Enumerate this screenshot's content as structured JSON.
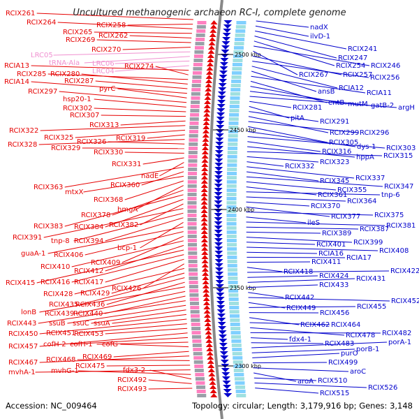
{
  "title": "Uncultured methanogenic archaeon RC-I, complete genome",
  "footer": {
    "accession": "Accession: NC_009464",
    "summary": "Topology: circular; Length: 3,179,916 bp; Genes: 3,148"
  },
  "colors": {
    "forward": "#e60000",
    "reverse": "#0000cc",
    "rna": "#f090d0",
    "backbone": "#888888"
  },
  "ticks": [
    "2500 kbp",
    "2450 kbp",
    "2400 kbp",
    "2350 kbp",
    "2300 kbp"
  ],
  "left_labels": [
    {
      "text": "RCIX261",
      "color": "red"
    },
    {
      "text": "RCIX258",
      "color": "red"
    },
    {
      "text": "RCIX264",
      "color": "red"
    },
    {
      "text": "RCIX265",
      "color": "red"
    },
    {
      "text": "RCIX262",
      "color": "red"
    },
    {
      "text": "RCIX269",
      "color": "red"
    },
    {
      "text": "RCIX270",
      "color": "red"
    },
    {
      "text": "LRC05",
      "color": "pink"
    },
    {
      "text": "tRNA-Ala",
      "color": "pink"
    },
    {
      "text": "LRC06",
      "color": "pink"
    },
    {
      "text": "LRC04",
      "color": "pink"
    },
    {
      "text": "RCIA13",
      "color": "red"
    },
    {
      "text": "RCIX274",
      "color": "red"
    },
    {
      "text": "RCIX285",
      "color": "red"
    },
    {
      "text": "RCIX280",
      "color": "red"
    },
    {
      "text": "RCIX287",
      "color": "red"
    },
    {
      "text": "RCIA14",
      "color": "red"
    },
    {
      "text": "pyrC",
      "color": "red"
    },
    {
      "text": "RCIX297",
      "color": "red"
    },
    {
      "text": "hsp20-1",
      "color": "red"
    },
    {
      "text": "RCIX302",
      "color": "red"
    },
    {
      "text": "RCIX307",
      "color": "red"
    },
    {
      "text": "RCIX313",
      "color": "red"
    },
    {
      "text": "RCIX322",
      "color": "red"
    },
    {
      "text": "RCIX325",
      "color": "red"
    },
    {
      "text": "RCIX319",
      "color": "red"
    },
    {
      "text": "RCIX328",
      "color": "red"
    },
    {
      "text": "RCIX326",
      "color": "red"
    },
    {
      "text": "RCIX329",
      "color": "red"
    },
    {
      "text": "RCIX330",
      "color": "red"
    },
    {
      "text": "RCIX331",
      "color": "red"
    },
    {
      "text": "nadE",
      "color": "red"
    },
    {
      "text": "RCIX363",
      "color": "red"
    },
    {
      "text": "RCIX360",
      "color": "red"
    },
    {
      "text": "mtxX",
      "color": "red"
    },
    {
      "text": "RCIX368",
      "color": "red"
    },
    {
      "text": "hmgA",
      "color": "red"
    },
    {
      "text": "RCIX378",
      "color": "red"
    },
    {
      "text": "RCIX383",
      "color": "red"
    },
    {
      "text": "RCIX384",
      "color": "red"
    },
    {
      "text": "RCIX382",
      "color": "red"
    },
    {
      "text": "RCIX391",
      "color": "red"
    },
    {
      "text": "tnp-8",
      "color": "red"
    },
    {
      "text": "RCIX394",
      "color": "red"
    },
    {
      "text": "bcp-1",
      "color": "red"
    },
    {
      "text": "guaA-1",
      "color": "red"
    },
    {
      "text": "RCIX406",
      "color": "red"
    },
    {
      "text": "RCIX409",
      "color": "red"
    },
    {
      "text": "RCIX410",
      "color": "red"
    },
    {
      "text": "RCIX412",
      "color": "red"
    },
    {
      "text": "RCIX415",
      "color": "red"
    },
    {
      "text": "RCIX416",
      "color": "red"
    },
    {
      "text": "RCIX417",
      "color": "red"
    },
    {
      "text": "RCIX426",
      "color": "red"
    },
    {
      "text": "RCIX428",
      "color": "red"
    },
    {
      "text": "RCIX429",
      "color": "red"
    },
    {
      "text": "RCIX435",
      "color": "red"
    },
    {
      "text": "RCIX436",
      "color": "red"
    },
    {
      "text": "lonB",
      "color": "red"
    },
    {
      "text": "RCIX439",
      "color": "red"
    },
    {
      "text": "RCIX440",
      "color": "red"
    },
    {
      "text": "RCIX443",
      "color": "red"
    },
    {
      "text": "ssuB",
      "color": "red"
    },
    {
      "text": "ssuC",
      "color": "red"
    },
    {
      "text": "ssuA",
      "color": "red"
    },
    {
      "text": "RCIX450",
      "color": "red"
    },
    {
      "text": "RCIX451",
      "color": "red"
    },
    {
      "text": "RCIX453",
      "color": "red"
    },
    {
      "text": "RCIX457",
      "color": "red"
    },
    {
      "text": "cofH-2",
      "color": "red"
    },
    {
      "text": "cofH-1",
      "color": "red"
    },
    {
      "text": "cofG",
      "color": "red"
    },
    {
      "text": "RCIX469",
      "color": "red"
    },
    {
      "text": "RCIX467",
      "color": "red"
    },
    {
      "text": "RCIX468",
      "color": "red"
    },
    {
      "text": "RCIX475",
      "color": "red"
    },
    {
      "text": "mvhA-1",
      "color": "red"
    },
    {
      "text": "mvhG-1",
      "color": "red"
    },
    {
      "text": "fdx3-2",
      "color": "red"
    },
    {
      "text": "RCIX492",
      "color": "red"
    },
    {
      "text": "RCIX493",
      "color": "red"
    }
  ],
  "right_labels": [
    {
      "text": "nadX"
    },
    {
      "text": "ilvD-1"
    },
    {
      "text": "RCIX241"
    },
    {
      "text": "RCIX247"
    },
    {
      "text": "RCIX254"
    },
    {
      "text": "RCIX246"
    },
    {
      "text": "RCIX267"
    },
    {
      "text": "RCIX257"
    },
    {
      "text": "RCIX256"
    },
    {
      "text": "RCIA12"
    },
    {
      "text": "ansB"
    },
    {
      "text": "RCIA11"
    },
    {
      "text": "entB"
    },
    {
      "text": "mutM"
    },
    {
      "text": "gatB-2"
    },
    {
      "text": "argH"
    },
    {
      "text": "RCIX281"
    },
    {
      "text": "pitA"
    },
    {
      "text": "RCIX291"
    },
    {
      "text": "RCIX299"
    },
    {
      "text": "RCIX296"
    },
    {
      "text": "RCIX305"
    },
    {
      "text": "dys-1"
    },
    {
      "text": "RCIX303"
    },
    {
      "text": "RCIX316"
    },
    {
      "text": "hppA"
    },
    {
      "text": "RCIX315"
    },
    {
      "text": "RCIX323"
    },
    {
      "text": "RCIX332"
    },
    {
      "text": "RCIX337"
    },
    {
      "text": "RCIX345"
    },
    {
      "text": "RCIX347"
    },
    {
      "text": "RCIX355"
    },
    {
      "text": "RCIX361"
    },
    {
      "text": "tnp-6"
    },
    {
      "text": "RCIX364"
    },
    {
      "text": "RCIX370"
    },
    {
      "text": "RCIX377"
    },
    {
      "text": "RCIX375"
    },
    {
      "text": "ileS"
    },
    {
      "text": "RCIX381"
    },
    {
      "text": "RCIX387"
    },
    {
      "text": "RCIX389"
    },
    {
      "text": "RCIX399"
    },
    {
      "text": "RCIX401"
    },
    {
      "text": "RCIX408"
    },
    {
      "text": "RCIA16"
    },
    {
      "text": "RCIA17"
    },
    {
      "text": "RCIX411"
    },
    {
      "text": "RCIX418"
    },
    {
      "text": "RCIX422"
    },
    {
      "text": "RCIX424"
    },
    {
      "text": "RCIX431"
    },
    {
      "text": "RCIX433"
    },
    {
      "text": "RCIX442"
    },
    {
      "text": "RCIX452"
    },
    {
      "text": "RCIX449"
    },
    {
      "text": "RCIX455"
    },
    {
      "text": "RCIX456"
    },
    {
      "text": "RCIX462"
    },
    {
      "text": "RCIX464"
    },
    {
      "text": "RCIX478"
    },
    {
      "text": "RCIX482"
    },
    {
      "text": "fdx4-1"
    },
    {
      "text": "RCIX483"
    },
    {
      "text": "porA-1"
    },
    {
      "text": "porB-1"
    },
    {
      "text": "purO"
    },
    {
      "text": "RCIX499"
    },
    {
      "text": "aroC"
    },
    {
      "text": "aroA"
    },
    {
      "text": "RCIX510"
    },
    {
      "text": "RCIX526"
    },
    {
      "text": "RCIX515"
    }
  ]
}
